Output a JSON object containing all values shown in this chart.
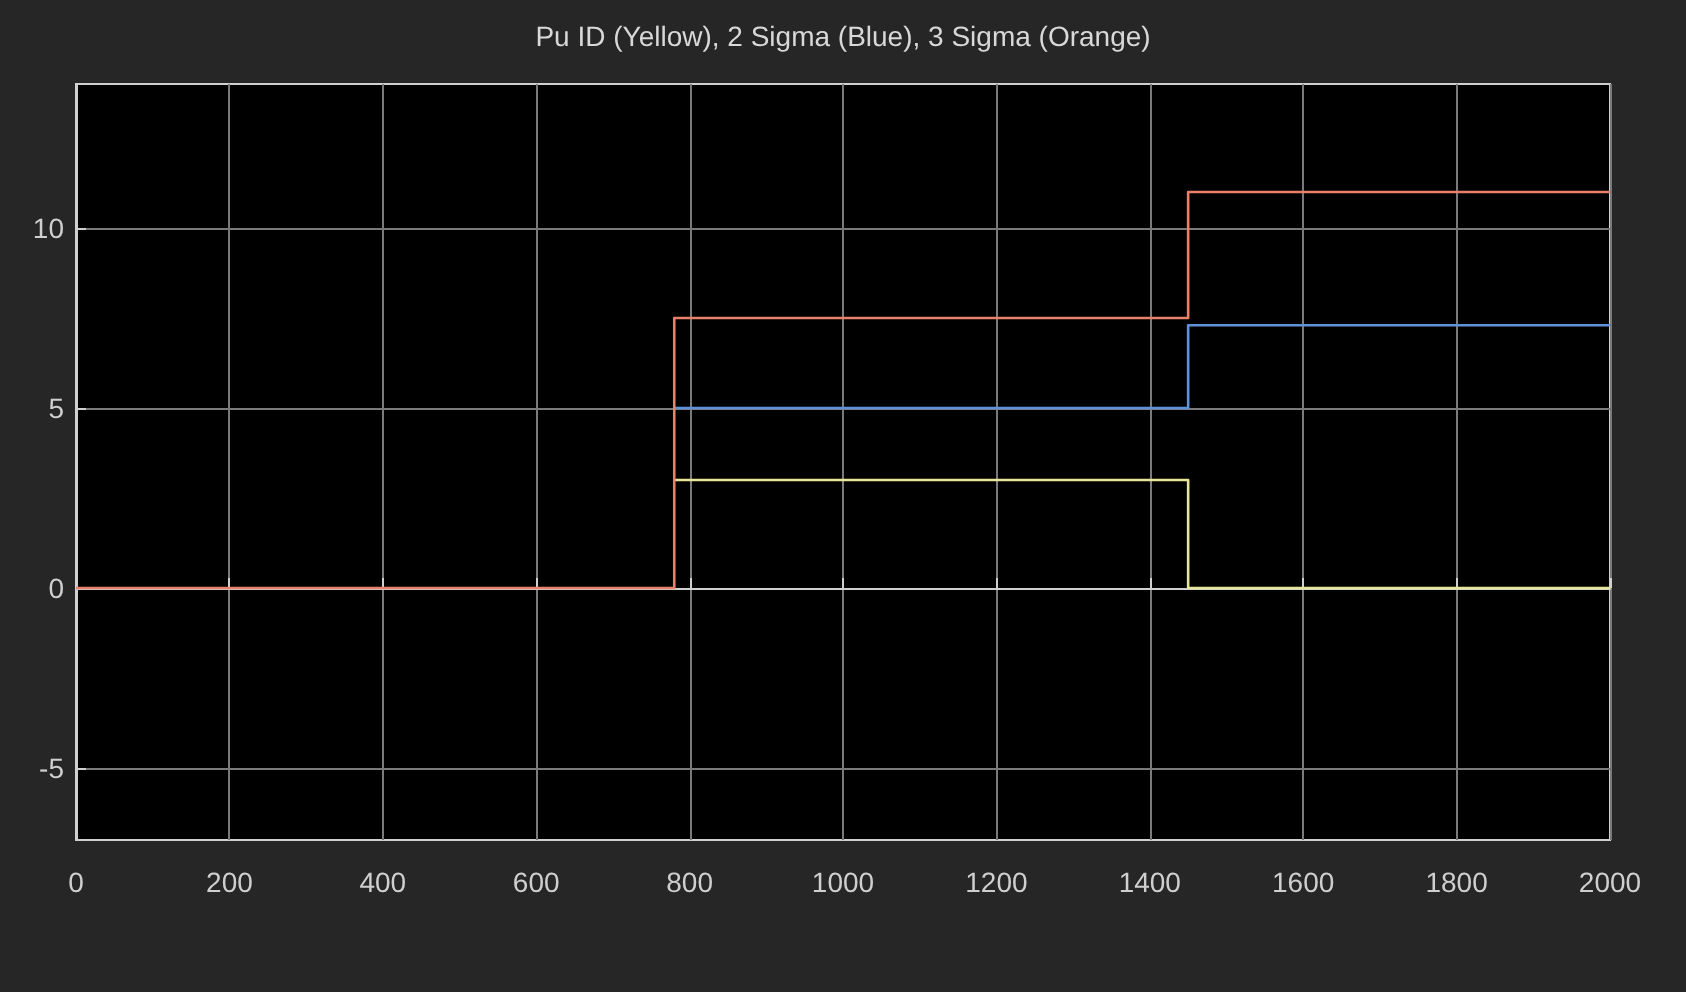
{
  "chart_data": {
    "type": "step",
    "title": "Pu ID (Yellow), 2 Sigma (Blue), 3 Sigma (Orange)",
    "series": [
      {
        "color": "#e6e69a",
        "x": [
          780,
          1450,
          2000
        ],
        "values": [
          3,
          0,
          0
        ]
      },
      {
        "color": "#5f92d8",
        "x": [
          780,
          1450,
          2000
        ],
        "values": [
          5,
          7.3,
          7.3
        ]
      },
      {
        "color": "#e8806a",
        "x": [
          0,
          780,
          1450,
          2000
        ],
        "values": [
          0,
          7.5,
          11,
          11
        ]
      }
    ],
    "xlim": [
      0,
      2000
    ],
    "xticks": [
      0,
      200,
      400,
      600,
      800,
      1000,
      1200,
      1400,
      1600,
      1800,
      2000
    ],
    "ylim": [
      -7,
      14
    ],
    "yticks": [
      -5,
      0,
      5,
      10
    ],
    "grid": true,
    "marker": "none",
    "line_style": "solid"
  }
}
